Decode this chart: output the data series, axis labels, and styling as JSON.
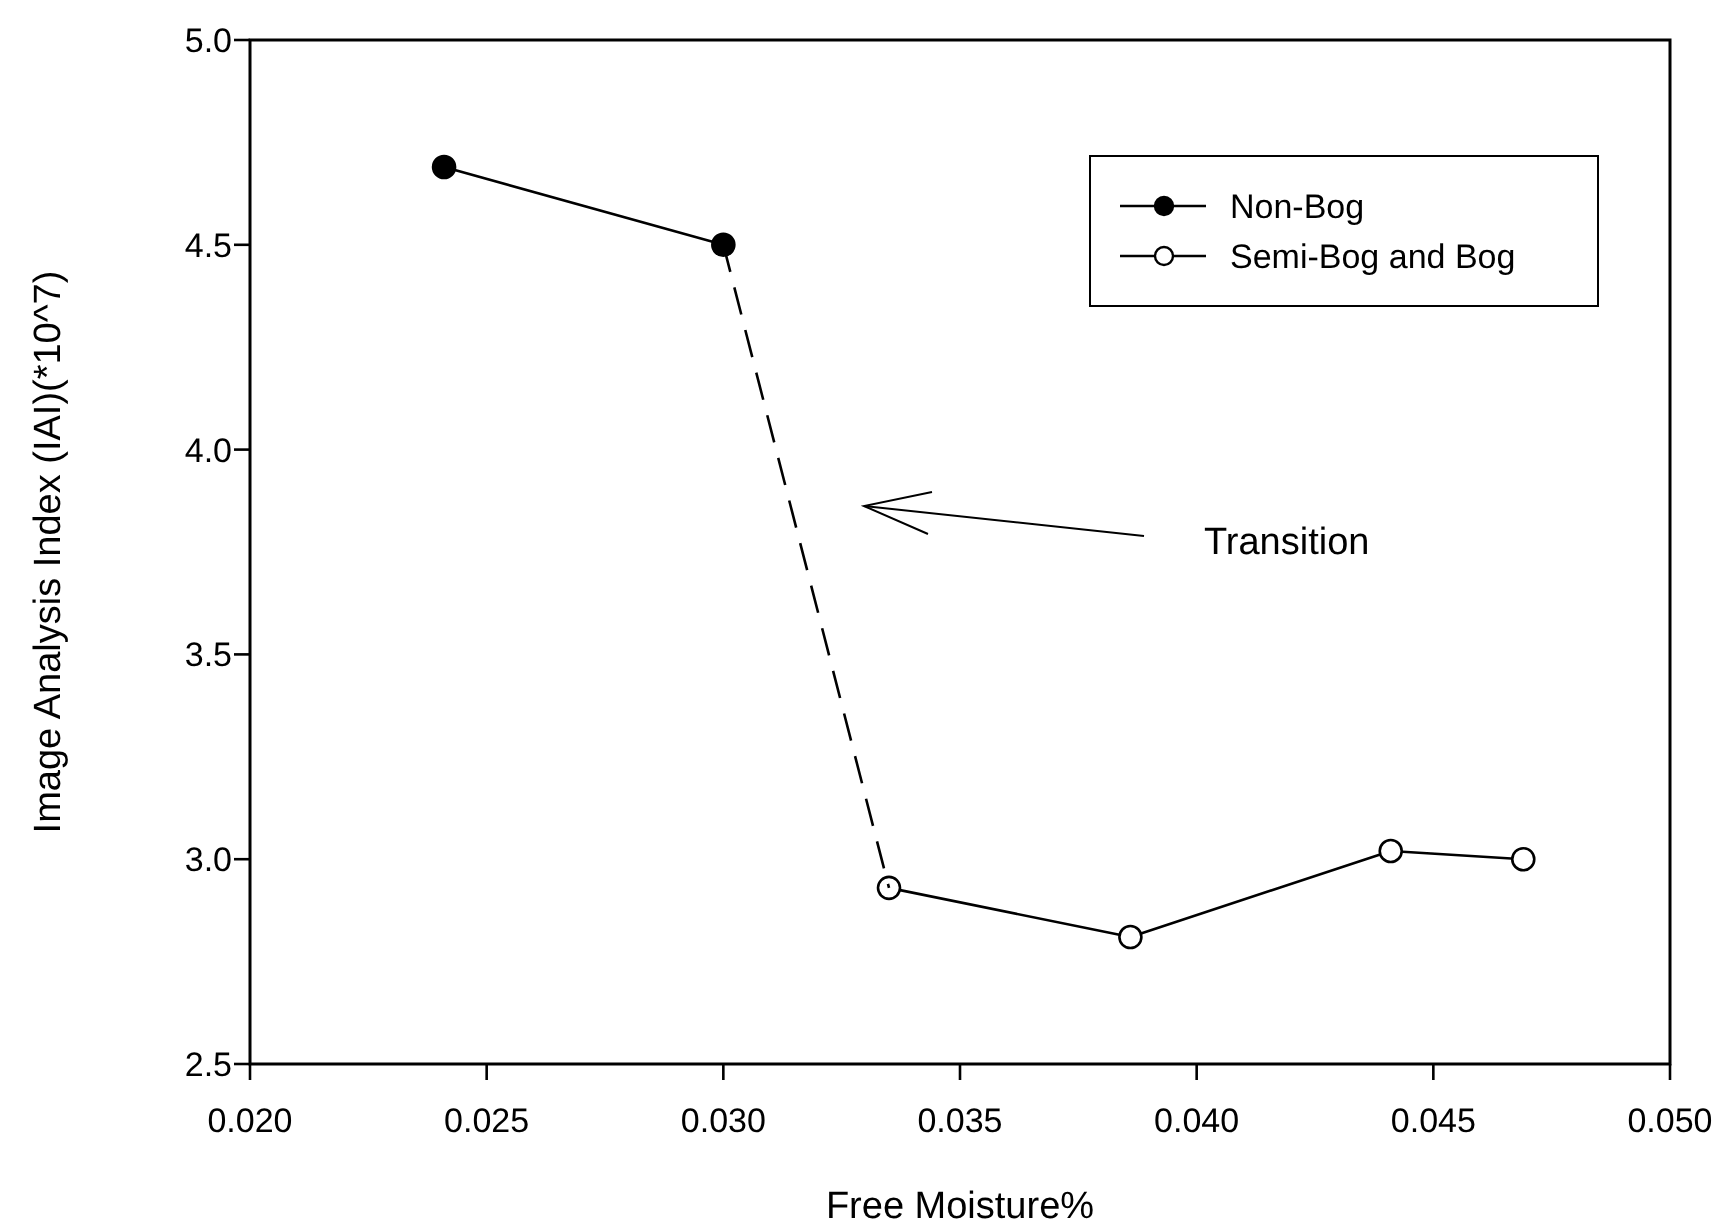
{
  "chart_data": {
    "type": "line",
    "xlabel": "Free Moisture%",
    "ylabel": "Image Analysis Index (IAI)(*10^7)",
    "xlim": [
      0.02,
      0.05
    ],
    "xticks": [
      {
        "value": 0.02,
        "label": "0.020"
      },
      {
        "value": 0.025,
        "label": "0.025"
      },
      {
        "value": 0.03,
        "label": "0.030"
      },
      {
        "value": 0.035,
        "label": "0.035"
      },
      {
        "value": 0.04,
        "label": "0.040"
      },
      {
        "value": 0.045,
        "label": "0.045"
      },
      {
        "value": 0.05,
        "label": "0.050"
      }
    ],
    "ylim": [
      2.5,
      5.0
    ],
    "yticks": [
      {
        "value": 2.5,
        "label": "2.5"
      },
      {
        "value": 3.0,
        "label": "3.0"
      },
      {
        "value": 3.5,
        "label": "3.5"
      },
      {
        "value": 4.0,
        "label": "4.0"
      },
      {
        "value": 4.5,
        "label": "4.5"
      },
      {
        "value": 5.0,
        "label": "5.0"
      }
    ],
    "grid": false,
    "legend": "top right",
    "series": [
      {
        "name": "Non-Bog",
        "color": "#000000",
        "marker": "circle",
        "line_style": "solid",
        "x": [
          0.0241,
          0.03
        ],
        "values": [
          4.69,
          4.5
        ]
      },
      {
        "name": "Semi-Bog and Bog",
        "color": "#ffffff",
        "marker": "circle",
        "line_style": "solid",
        "x": [
          0.0335,
          0.0386,
          0.0441,
          0.0469
        ],
        "values": [
          2.93,
          2.81,
          3.02,
          3.0
        ]
      },
      {
        "color": "#000000",
        "marker": "none",
        "line_style": "dashed",
        "x": [
          0.03,
          0.0335
        ],
        "values": [
          4.5,
          2.93
        ]
      }
    ],
    "annotations": [
      "Transition"
    ]
  }
}
